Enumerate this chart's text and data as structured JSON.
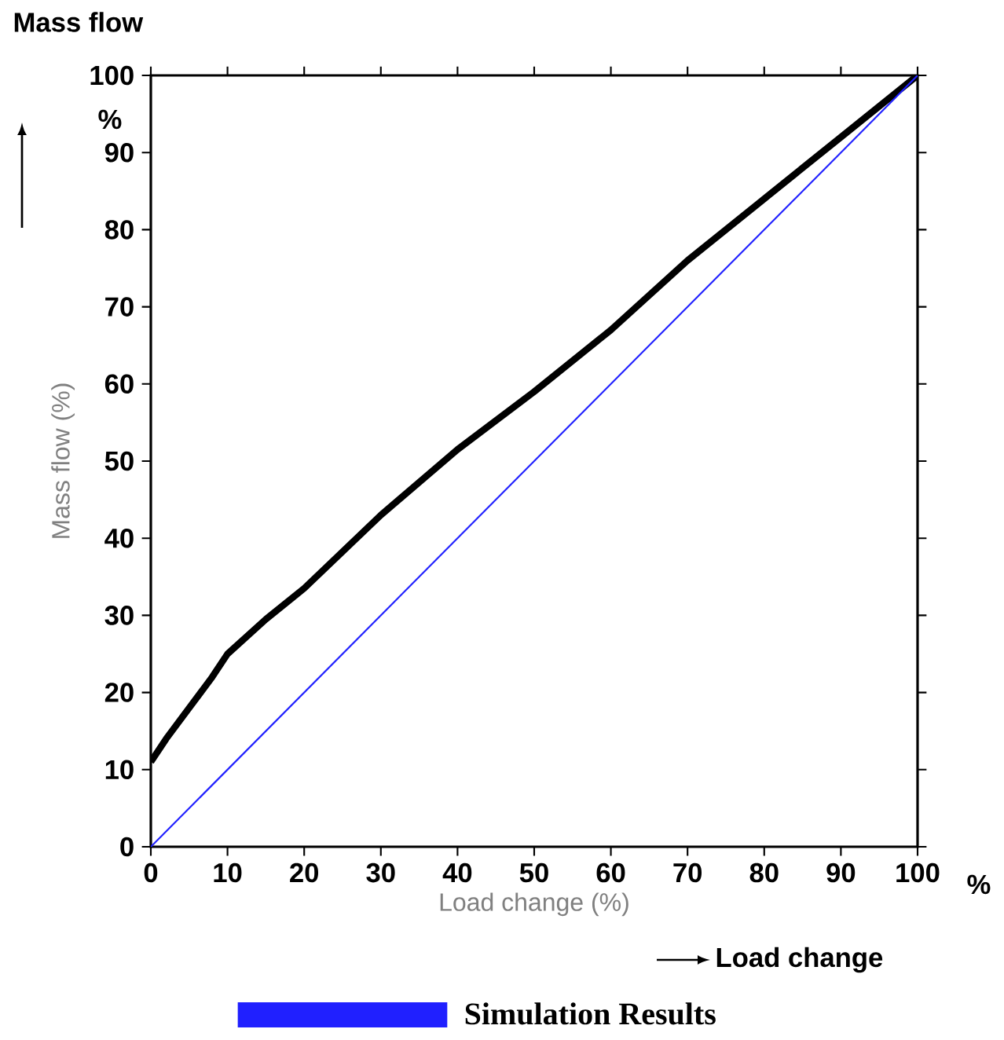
{
  "chart_data": {
    "type": "line",
    "xlabel": "Load change (%)",
    "ylabel": "Mass flow (%)",
    "annotations": [
      "Mass flow",
      "%",
      "%",
      "Load change"
    ],
    "x": [
      0,
      2,
      5,
      8,
      10,
      15,
      20,
      30,
      40,
      50,
      60,
      70,
      80,
      90,
      100
    ],
    "series": [
      {
        "color": "#000000",
        "values": [
          11,
          14,
          18,
          22,
          25,
          29.5,
          33.5,
          43,
          51.5,
          59,
          67,
          76,
          84,
          92,
          100
        ]
      },
      {
        "name": "Simulation Results",
        "color": "#2020ff",
        "x": [
          0,
          100
        ],
        "values": [
          0,
          100
        ]
      }
    ],
    "xlim": [
      0,
      100
    ],
    "ylim": [
      0,
      100
    ],
    "xticks": [
      0,
      10,
      20,
      30,
      40,
      50,
      60,
      70,
      80,
      90,
      100
    ],
    "yticks": [
      0,
      10,
      20,
      30,
      40,
      50,
      60,
      70,
      80,
      90,
      100
    ],
    "legend": "bottom",
    "grid": false
  }
}
